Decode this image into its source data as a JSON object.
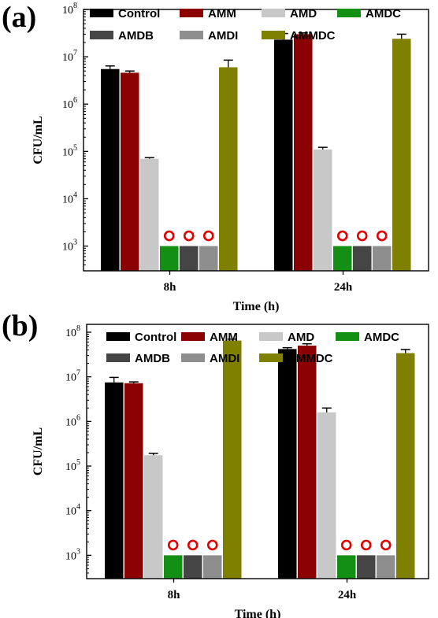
{
  "legend_colors": {
    "Control": "#000000",
    "AMM": "#8b0000",
    "AMD": "#c8c8c8",
    "AMDC": "#139013",
    "AMDB": "#454545",
    "AMDI": "#8e8e8e",
    "AMMDC": "#808000"
  },
  "marker_color": "#e00000",
  "chart_data": [
    {
      "panel": "(a)",
      "type": "bar",
      "log_scale": true,
      "xlabel": "Time (h)",
      "ylabel": "CFU/mL",
      "ylim": [
        300,
        100000000
      ],
      "y_ticks": [
        1000,
        10000,
        100000,
        1000000,
        10000000,
        100000000
      ],
      "y_tick_labels": [
        {
          "base": "10",
          "exp": "3"
        },
        {
          "base": "10",
          "exp": "4"
        },
        {
          "base": "10",
          "exp": "5"
        },
        {
          "base": "10",
          "exp": "6"
        },
        {
          "base": "10",
          "exp": "7"
        },
        {
          "base": "10",
          "exp": "8"
        }
      ],
      "categories": [
        "8h",
        "24h"
      ],
      "legend_placement": "top",
      "series": [
        {
          "name": "Control",
          "values": [
            5500000,
            23000000
          ],
          "errors": [
            900000,
            8000000
          ]
        },
        {
          "name": "AMM",
          "values": [
            4600000,
            30000000
          ],
          "errors": [
            400000,
            2000000
          ]
        },
        {
          "name": "AMD",
          "values": [
            70000,
            110000
          ],
          "errors": [
            4000,
            12000
          ]
        },
        {
          "name": "AMDC",
          "values": [
            1000,
            1000
          ],
          "errors": [
            0,
            0
          ]
        },
        {
          "name": "AMDB",
          "values": [
            1000,
            1000
          ],
          "errors": [
            0,
            0
          ]
        },
        {
          "name": "AMDI",
          "values": [
            1000,
            1000
          ],
          "errors": [
            0,
            0
          ]
        },
        {
          "name": "AMMDC",
          "values": [
            6000000,
            24000000
          ],
          "errors": [
            2500000,
            6000000
          ]
        }
      ],
      "markers": {
        "symbol": "open-circle",
        "series": [
          "AMDC",
          "AMDB",
          "AMDI"
        ]
      }
    },
    {
      "panel": "(b)",
      "type": "bar",
      "log_scale": true,
      "xlabel": "Time (h)",
      "ylabel": "CFU/mL",
      "ylim": [
        300,
        150000000
      ],
      "y_ticks": [
        1000,
        10000,
        100000,
        1000000,
        10000000,
        100000000
      ],
      "y_tick_labels": [
        {
          "base": "10",
          "exp": "3"
        },
        {
          "base": "10",
          "exp": "4"
        },
        {
          "base": "10",
          "exp": "5"
        },
        {
          "base": "10",
          "exp": "6"
        },
        {
          "base": "10",
          "exp": "7"
        },
        {
          "base": "10",
          "exp": "8"
        }
      ],
      "categories": [
        "8h",
        "24h"
      ],
      "legend_placement": "top",
      "series": [
        {
          "name": "Control",
          "values": [
            7500000,
            42000000
          ],
          "errors": [
            2200000,
            3000000
          ]
        },
        {
          "name": "AMM",
          "values": [
            7200000,
            50000000
          ],
          "errors": [
            500000,
            5000000
          ]
        },
        {
          "name": "AMD",
          "values": [
            175000,
            1600000
          ],
          "errors": [
            18000,
            400000
          ]
        },
        {
          "name": "AMDC",
          "values": [
            1000,
            1000
          ],
          "errors": [
            0,
            0
          ]
        },
        {
          "name": "AMDB",
          "values": [
            1000,
            1000
          ],
          "errors": [
            0,
            0
          ]
        },
        {
          "name": "AMDI",
          "values": [
            1000,
            1000
          ],
          "errors": [
            0,
            0
          ]
        },
        {
          "name": "AMMDC",
          "values": [
            65000000,
            34000000
          ],
          "errors": [
            5000000,
            7000000
          ]
        }
      ],
      "markers": {
        "symbol": "open-circle",
        "series": [
          "AMDC",
          "AMDB",
          "AMDI"
        ]
      }
    }
  ]
}
